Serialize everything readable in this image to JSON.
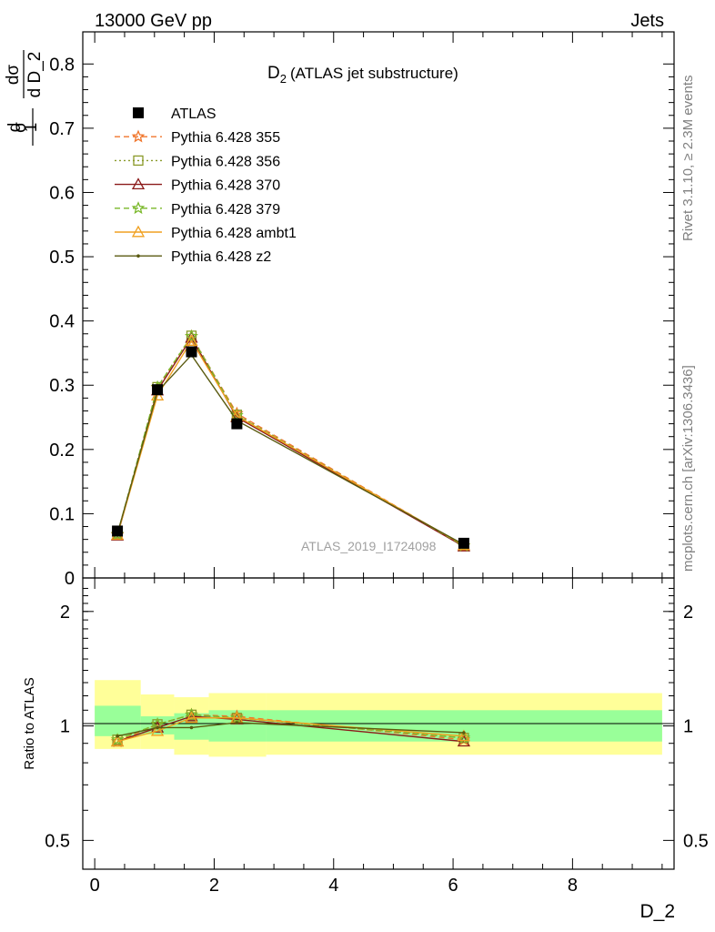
{
  "header": {
    "left": "13000 GeV pp",
    "right": "Jets"
  },
  "side": {
    "rivet": "Rivet 3.1.10, ≥ 2.3M events",
    "mcplots": "mcplots.cern.ch [arXiv:1306.3436]"
  },
  "watermark": "ATLAS_2019_I1724098",
  "chart_data": [
    {
      "type": "line",
      "title_main": "D",
      "title_sub": "2",
      "title_rest": "(ATLAS jet substructure)",
      "ylabel_parts": {
        "one": "1",
        "sigma": "σ",
        "d": "d",
        "dsigma": "dσ",
        "dD": "d D_2"
      },
      "xlim": [
        -0.2,
        9.7
      ],
      "ylim": [
        0,
        0.85
      ],
      "yticks": [
        "0",
        "0.1",
        "0.2",
        "0.3",
        "0.4",
        "0.5",
        "0.6",
        "0.7",
        "0.8"
      ],
      "grid": false,
      "legend_position": "top-left",
      "x": [
        0.38,
        1.05,
        1.62,
        2.38,
        6.18
      ],
      "series": [
        {
          "name": "ATLAS",
          "color": "#000000",
          "marker": "square",
          "values": [
            0.073,
            0.293,
            0.352,
            0.24,
            0.054
          ]
        },
        {
          "name": "Pythia 6.428 355",
          "color": "#f0762c",
          "marker": "star",
          "dash": "dashed",
          "values": [
            0.067,
            0.296,
            0.376,
            0.256,
            0.05
          ]
        },
        {
          "name": "Pythia 6.428 356",
          "color": "#8a9a2a",
          "marker": "open-square",
          "dash": "dotted",
          "values": [
            0.068,
            0.297,
            0.377,
            0.254,
            0.05
          ]
        },
        {
          "name": "Pythia 6.428 370",
          "color": "#8b1a1a",
          "marker": "open-triangle",
          "dash": "solid",
          "values": [
            0.066,
            0.292,
            0.374,
            0.25,
            0.049
          ]
        },
        {
          "name": "Pythia 6.428 379",
          "color": "#7ab82a",
          "marker": "star",
          "dash": "dashed",
          "values": [
            0.068,
            0.297,
            0.376,
            0.253,
            0.05
          ]
        },
        {
          "name": "Pythia 6.428 ambt1",
          "color": "#f0a020",
          "marker": "open-triangle",
          "dash": "solid",
          "values": [
            0.067,
            0.284,
            0.369,
            0.252,
            0.051
          ]
        },
        {
          "name": "Pythia 6.428 z2",
          "color": "#5a5a10",
          "marker": "dot",
          "dash": "solid",
          "values": [
            0.069,
            0.29,
            0.347,
            0.245,
            0.052
          ]
        }
      ]
    },
    {
      "type": "line",
      "ylabel": "Ratio to ATLAS",
      "xlabel": "D_2",
      "xticks": [
        "0",
        "2",
        "4",
        "6",
        "8"
      ],
      "yticks": [
        "0.5",
        "1",
        "2"
      ],
      "yscale": "log",
      "ylim": [
        0.42,
        2.45
      ],
      "bands": [
        {
          "xlo": 0.0,
          "xhi": 0.77,
          "inner": [
            0.94,
            1.13
          ],
          "outer": [
            0.87,
            1.32
          ]
        },
        {
          "xlo": 0.77,
          "xhi": 1.33,
          "inner": [
            0.95,
            1.06
          ],
          "outer": [
            0.87,
            1.21
          ]
        },
        {
          "xlo": 1.33,
          "xhi": 1.91,
          "inner": [
            0.92,
            1.08
          ],
          "outer": [
            0.84,
            1.19
          ]
        },
        {
          "xlo": 1.91,
          "xhi": 2.87,
          "inner": [
            0.91,
            1.1
          ],
          "outer": [
            0.83,
            1.22
          ]
        },
        {
          "xlo": 2.87,
          "xhi": 9.5,
          "inner": [
            0.91,
            1.1
          ],
          "outer": [
            0.84,
            1.22
          ]
        }
      ],
      "x": [
        0.38,
        1.05,
        1.62,
        2.38,
        6.18
      ],
      "series": [
        {
          "name": "Pythia 6.428 355",
          "values": [
            0.91,
            1.01,
            1.07,
            1.06,
            0.92
          ]
        },
        {
          "name": "Pythia 6.428 356",
          "values": [
            0.92,
            1.01,
            1.07,
            1.05,
            0.93
          ]
        },
        {
          "name": "Pythia 6.428 370",
          "values": [
            0.91,
            0.99,
            1.06,
            1.04,
            0.91
          ]
        },
        {
          "name": "Pythia 6.428 379",
          "values": [
            0.92,
            1.01,
            1.07,
            1.05,
            0.93
          ]
        },
        {
          "name": "Pythia 6.428 ambt1",
          "values": [
            0.91,
            0.97,
            1.05,
            1.05,
            0.94
          ]
        },
        {
          "name": "Pythia 6.428 z2",
          "values": [
            0.94,
            0.99,
            0.99,
            1.02,
            0.96
          ]
        }
      ]
    }
  ]
}
